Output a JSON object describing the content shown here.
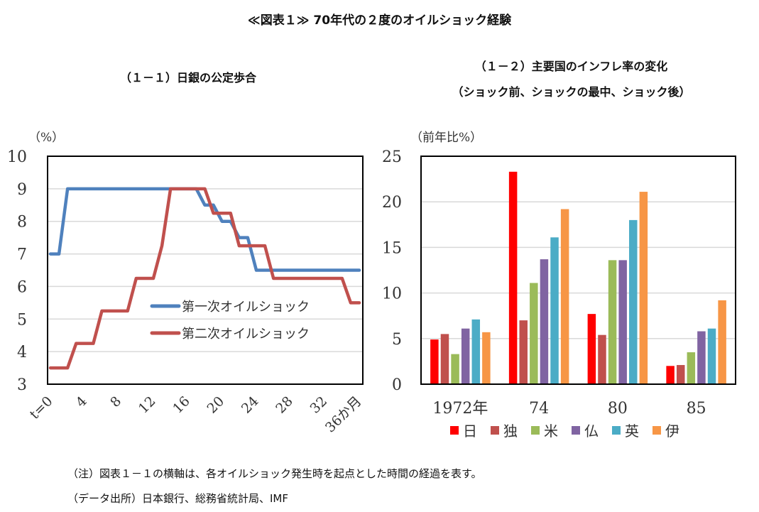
{
  "title": "≪図表１≫ 70年代の２度のオイルショック経験",
  "notes": [
    "（注）図表１－１の横軸は、各オイルショック発生時を起点とした時間の経過を表す。",
    "（データ出所）日本銀行、総務省統計局、IMF"
  ],
  "chart_data": [
    {
      "type": "line",
      "title": "（１－１）日銀の公定歩合",
      "ylabel": "（%）",
      "ylim": [
        3,
        10
      ],
      "yticks": [
        3,
        4,
        5,
        6,
        7,
        8,
        9,
        10
      ],
      "xlim": [
        0,
        36
      ],
      "xticks": [
        0,
        4,
        8,
        12,
        16,
        20,
        24,
        28,
        32,
        36
      ],
      "xtick_labels": [
        "t=0",
        "4",
        "8",
        "12",
        "16",
        "20",
        "24",
        "28",
        "32",
        "36か月"
      ],
      "grid": true,
      "legend": "center-right",
      "series": [
        {
          "name": "第一次オイルショック",
          "color": "#4F81BD",
          "values": [
            7,
            7,
            9,
            9,
            9,
            9,
            9,
            9,
            9,
            9,
            9,
            9,
            9,
            9,
            9,
            9,
            9,
            9,
            8.5,
            8.5,
            8,
            8,
            7.5,
            7.5,
            6.5,
            6.5,
            6.5,
            6.5,
            6.5,
            6.5,
            6.5,
            6.5,
            6.5,
            6.5,
            6.5,
            6.5,
            6.5
          ]
        },
        {
          "name": "第二次オイルショック",
          "color": "#C0504D",
          "values": [
            3.5,
            3.5,
            3.5,
            4.25,
            4.25,
            4.25,
            5.25,
            5.25,
            5.25,
            5.25,
            6.25,
            6.25,
            6.25,
            7.25,
            9,
            9,
            9,
            9,
            9,
            8.25,
            8.25,
            8.25,
            7.25,
            7.25,
            7.25,
            7.25,
            6.25,
            6.25,
            6.25,
            6.25,
            6.25,
            6.25,
            6.25,
            6.25,
            6.25,
            5.5,
            5.5
          ]
        }
      ]
    },
    {
      "type": "bar",
      "title": "（１－２）主要国のインフレ率の変化",
      "subtitle": "（ショック前、ショックの最中、ショック後）",
      "ylabel": "（前年比%）",
      "ylim": [
        0,
        25
      ],
      "yticks": [
        0,
        5,
        10,
        15,
        20,
        25
      ],
      "grid": true,
      "legend": "bottom",
      "categories": [
        "1972年",
        "74",
        "80",
        "85"
      ],
      "series": [
        {
          "name": "日",
          "color": "#FF0000",
          "values": [
            4.9,
            23.3,
            7.7,
            2.0
          ]
        },
        {
          "name": "独",
          "color": "#C0504D",
          "values": [
            5.5,
            7.0,
            5.4,
            2.1
          ]
        },
        {
          "name": "米",
          "color": "#9BBB59",
          "values": [
            3.3,
            11.1,
            13.6,
            3.5
          ]
        },
        {
          "name": "仏",
          "color": "#8064A2",
          "values": [
            6.1,
            13.7,
            13.6,
            5.8
          ]
        },
        {
          "name": "英",
          "color": "#4BACC6",
          "values": [
            7.1,
            16.1,
            18.0,
            6.1
          ]
        },
        {
          "name": "伊",
          "color": "#F79646",
          "values": [
            5.7,
            19.2,
            21.1,
            9.2
          ]
        }
      ]
    }
  ]
}
